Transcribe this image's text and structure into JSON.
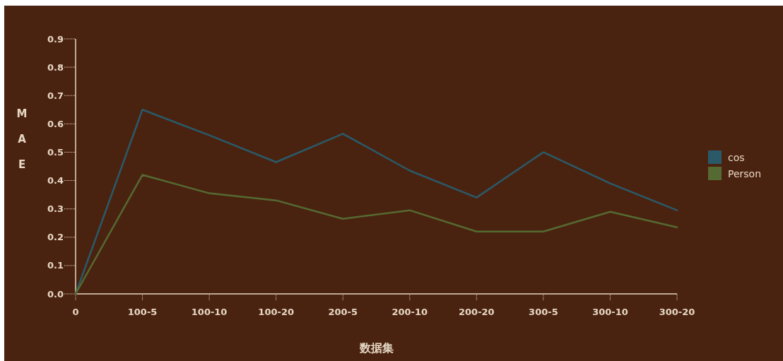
{
  "chart_data": {
    "type": "line",
    "xlabel": "数据集",
    "ylabel": "MAE",
    "categories": [
      "0",
      "100-5",
      "100-10",
      "100-20",
      "200-5",
      "200-10",
      "200-20",
      "300-5",
      "300-10",
      "300-20"
    ],
    "series": [
      {
        "name": "cos",
        "color": "#2a5a6a",
        "values": [
          0,
          0.65,
          0.56,
          0.465,
          0.565,
          0.435,
          0.34,
          0.5,
          0.39,
          0.295
        ]
      },
      {
        "name": "Person",
        "color": "#556a32",
        "values": [
          0,
          0.42,
          0.355,
          0.33,
          0.265,
          0.295,
          0.22,
          0.22,
          0.29,
          0.235
        ]
      }
    ],
    "ylim": [
      0,
      0.9
    ],
    "yticks": [
      {
        "value": 0,
        "label": "0.0"
      },
      {
        "value": 0.1,
        "label": "0.1"
      },
      {
        "value": 0.2,
        "label": "0.2"
      },
      {
        "value": 0.3,
        "label": "0.3"
      },
      {
        "value": 0.4,
        "label": "0.4"
      },
      {
        "value": 0.5,
        "label": "0.5"
      },
      {
        "value": 0.6,
        "label": "0.6"
      },
      {
        "value": 0.7,
        "label": "0.7"
      },
      {
        "value": 0.8,
        "label": "0.8"
      },
      {
        "value": 0.9,
        "label": "0.9"
      }
    ],
    "grid": false,
    "legend": "right",
    "marker": "none",
    "line_style": "solid"
  }
}
